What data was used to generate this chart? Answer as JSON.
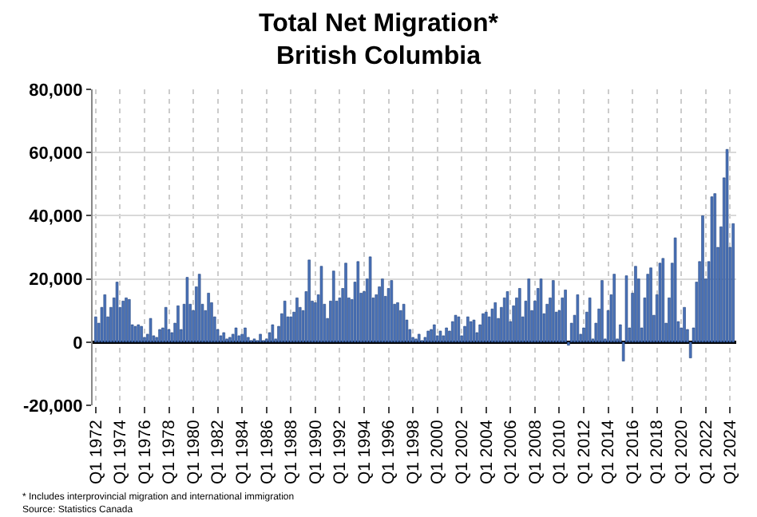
{
  "chart_data": {
    "type": "bar",
    "title": "Total Net Migration*\nBritish Columbia",
    "categories": [
      "Q1 1972",
      null,
      null,
      null,
      null,
      null,
      null,
      null,
      "Q1 1974",
      null,
      null,
      null,
      null,
      null,
      null,
      null,
      "Q1 1976",
      null,
      null,
      null,
      null,
      null,
      null,
      null,
      "Q1 1978",
      null,
      null,
      null,
      null,
      null,
      null,
      null,
      "Q1 1980",
      null,
      null,
      null,
      null,
      null,
      null,
      null,
      "Q1 1982",
      null,
      null,
      null,
      null,
      null,
      null,
      null,
      "Q1 1984",
      null,
      null,
      null,
      null,
      null,
      null,
      null,
      "Q1 1986",
      null,
      null,
      null,
      null,
      null,
      null,
      null,
      "Q1 1988",
      null,
      null,
      null,
      null,
      null,
      null,
      null,
      "Q1 1990",
      null,
      null,
      null,
      null,
      null,
      null,
      null,
      "Q1 1992",
      null,
      null,
      null,
      null,
      null,
      null,
      null,
      "Q1 1994",
      null,
      null,
      null,
      null,
      null,
      null,
      null,
      "Q1 1996",
      null,
      null,
      null,
      null,
      null,
      null,
      null,
      "Q1 1998",
      null,
      null,
      null,
      null,
      null,
      null,
      null,
      "Q1 2000",
      null,
      null,
      null,
      null,
      null,
      null,
      null,
      "Q1 2002",
      null,
      null,
      null,
      null,
      null,
      null,
      null,
      "Q1 2004",
      null,
      null,
      null,
      null,
      null,
      null,
      null,
      "Q1 2006",
      null,
      null,
      null,
      null,
      null,
      null,
      null,
      "Q1 2008",
      null,
      null,
      null,
      null,
      null,
      null,
      null,
      "Q1 2010",
      null,
      null,
      null,
      null,
      null,
      null,
      null,
      "Q1 2012",
      null,
      null,
      null,
      null,
      null,
      null,
      null,
      "Q1 2014",
      null,
      null,
      null,
      null,
      null,
      null,
      null,
      "Q1 2016",
      null,
      null,
      null,
      null,
      null,
      null,
      null,
      "Q1 2018",
      null,
      null,
      null,
      null,
      null,
      null,
      null,
      "Q1 2020",
      null,
      null,
      null,
      null,
      null,
      null,
      null,
      "Q1 2022",
      null,
      null,
      null,
      null,
      null,
      null,
      null,
      "Q1 2024",
      null
    ],
    "values": [
      8000,
      6000,
      11000,
      15000,
      8000,
      11000,
      14000,
      19000,
      11000,
      13000,
      14000,
      13500,
      5500,
      5000,
      5500,
      5000,
      1500,
      2500,
      7500,
      2000,
      1500,
      4000,
      4500,
      11000,
      4000,
      3000,
      6000,
      11500,
      4000,
      12000,
      20500,
      12000,
      10000,
      17500,
      21500,
      12000,
      10000,
      15500,
      12500,
      8000,
      4000,
      2000,
      3000,
      1000,
      1500,
      2500,
      4500,
      2000,
      2500,
      4500,
      1500,
      500,
      1000,
      500,
      2500,
      500,
      1000,
      3000,
      5500,
      1000,
      5000,
      9000,
      13000,
      8000,
      8000,
      9500,
      14000,
      11000,
      10000,
      16000,
      26000,
      13000,
      12500,
      15000,
      24000,
      12000,
      7500,
      13000,
      22500,
      13000,
      14000,
      17000,
      25000,
      14000,
      13500,
      19000,
      25500,
      15500,
      16000,
      20000,
      27000,
      14000,
      15000,
      17500,
      20000,
      14500,
      17000,
      19500,
      12000,
      12500,
      10000,
      12000,
      7000,
      4000,
      1500,
      1000,
      2500,
      500,
      1500,
      3500,
      4000,
      5500,
      2000,
      3500,
      2000,
      4500,
      3500,
      6500,
      8500,
      8000,
      2000,
      5000,
      8000,
      6500,
      7000,
      3000,
      5500,
      9000,
      9500,
      8000,
      10500,
      12500,
      7500,
      11000,
      14000,
      16000,
      6500,
      11500,
      14000,
      17000,
      8000,
      13000,
      20000,
      10000,
      13000,
      17000,
      20000,
      9000,
      12000,
      14000,
      19500,
      9500,
      10000,
      14000,
      16500,
      -1000,
      6000,
      8500,
      15000,
      2500,
      4500,
      9500,
      14000,
      1000,
      6000,
      10500,
      19500,
      1000,
      10000,
      15000,
      21500,
      1000,
      5500,
      -6000,
      21000,
      4500,
      15500,
      24000,
      20000,
      4500,
      14000,
      21500,
      23500,
      8500,
      15000,
      25000,
      26500,
      6000,
      14000,
      25000,
      33000,
      6500,
      4500,
      11000,
      4000,
      -5000,
      4500,
      19000,
      25500,
      40000,
      20000,
      25500,
      46000,
      47000,
      30000,
      36500,
      52000,
      61000,
      30000,
      37500
    ],
    "color": "#4a72b8",
    "ylim": [
      -20000,
      80000
    ],
    "yticks": [
      {
        "value": -20000,
        "label": "-20,000"
      },
      {
        "value": 0,
        "label": "0"
      },
      {
        "value": 20000,
        "label": "20,000"
      },
      {
        "value": 40000,
        "label": "40,000"
      },
      {
        "value": 60000,
        "label": "60,000"
      },
      {
        "value": 80000,
        "label": "80,000"
      }
    ],
    "grid": true,
    "annotations": [
      "* Includes interprovincial migration and international immigration",
      "Source: Statistics Canada"
    ]
  }
}
